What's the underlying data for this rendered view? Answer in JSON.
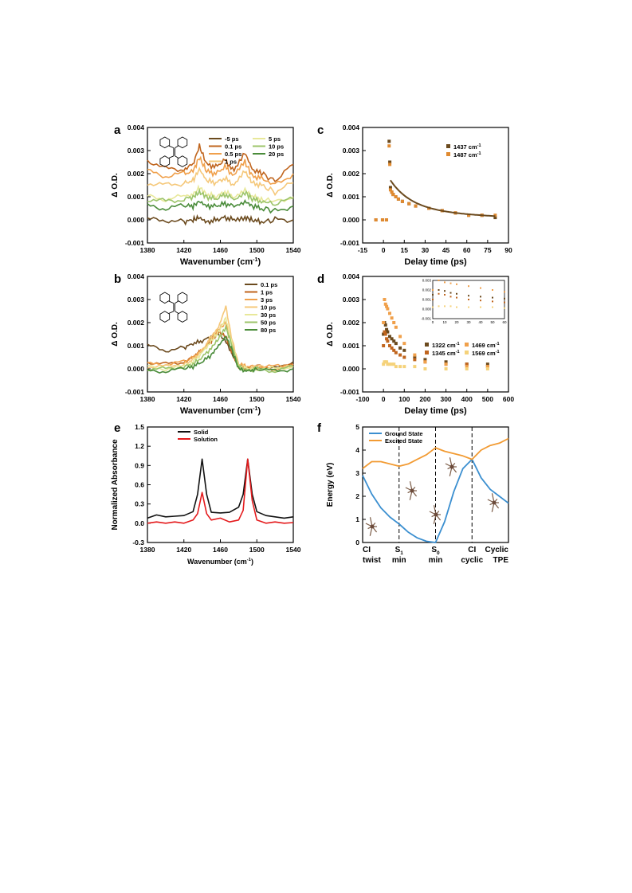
{
  "figure": {
    "panels": [
      {
        "letter": "a",
        "x_label": "Wavenumber (cm",
        "x_sup": "-1",
        "x_tail": ")",
        "y_label": "Δ O.D.",
        "x_ticks": [
          "1380",
          "1420",
          "1460",
          "1500",
          "1540"
        ],
        "y_ticks": [
          "-0.001",
          "0.000",
          "0.001",
          "0.002",
          "0.003",
          "0.004"
        ],
        "legend": [
          "-5 ps",
          "0.1 ps",
          "0.5 ps",
          "1 ps",
          "5 ps",
          "10 ps",
          "20 ps"
        ]
      },
      {
        "letter": "b",
        "x_label": "Wavenumber (cm",
        "x_sup": "-1",
        "x_tail": ")",
        "y_label": "Δ O.D.",
        "x_ticks": [
          "1380",
          "1420",
          "1460",
          "1500",
          "1540"
        ],
        "y_ticks": [
          "-0.001",
          "0.000",
          "0.001",
          "0.002",
          "0.003",
          "0.004"
        ],
        "legend": [
          "0.1 ps",
          "1 ps",
          "3 ps",
          "10 ps",
          "30 ps",
          "50 ps",
          "80 ps"
        ]
      },
      {
        "letter": "c",
        "x_label": "Delay time (ps)",
        "y_label": "Δ O.D.",
        "x_ticks": [
          "-15",
          "0",
          "15",
          "30",
          "45",
          "60",
          "75",
          "90"
        ],
        "y_ticks": [
          "-0.001",
          "0.000",
          "0.001",
          "0.002",
          "0.003",
          "0.004"
        ],
        "legend": [
          "1437 cm",
          "1487 cm"
        ],
        "legend_sup": "-1"
      },
      {
        "letter": "d",
        "x_label": "Delay time (ps)",
        "y_label": "Δ O.D.",
        "x_ticks": [
          "-100",
          "0",
          "100",
          "200",
          "300",
          "400",
          "500",
          "600"
        ],
        "y_ticks": [
          "-0.001",
          "0.000",
          "0.001",
          "0.002",
          "0.003",
          "0.004"
        ],
        "inset_x_ticks": [
          "0",
          "10",
          "20",
          "30",
          "40",
          "50",
          "60"
        ],
        "inset_y_ticks": [
          "-0.001",
          "0.000",
          "0.001",
          "0.002",
          "0.003"
        ],
        "legend": [
          "1322 cm",
          "1345 cm",
          "1469 cm",
          "1569 cm"
        ],
        "legend_sup": "-1"
      },
      {
        "letter": "e",
        "x_label": "Wavenumber (cm",
        "x_sup": "-1",
        "x_tail": ")",
        "y_label": "Normalized Absorbance",
        "x_ticks": [
          "1380",
          "1420",
          "1460",
          "1500",
          "1540"
        ],
        "y_ticks": [
          "-0.3",
          "0.0",
          "0.3",
          "0.6",
          "0.9",
          "1.2",
          "1.5"
        ],
        "legend": [
          "Solid",
          "Solution"
        ]
      },
      {
        "letter": "f",
        "y_label": "Energy (eV)",
        "y_ticks": [
          "0",
          "1",
          "2",
          "3",
          "4",
          "5"
        ],
        "x_ticks": [
          {
            "top": "CI",
            "bottom": "twist"
          },
          {
            "top": "S",
            "sub": "1",
            "bottom": "min"
          },
          {
            "top": "S",
            "sub": "0",
            "bottom": "min"
          },
          {
            "top": "CI",
            "bottom": "cyclic"
          },
          {
            "top": "Cyclic",
            "bottom": "TPE"
          }
        ],
        "legend": [
          "Ground State",
          "Excited State"
        ]
      }
    ]
  },
  "chart_data": [
    {
      "type": "line",
      "panel": "a",
      "xlim": [
        1380,
        1540
      ],
      "ylim": [
        -0.001,
        0.004
      ],
      "x": [
        1380,
        1400,
        1420,
        1430,
        1437,
        1445,
        1455,
        1465,
        1475,
        1487,
        1495,
        1505,
        1520,
        1540
      ],
      "series": [
        {
          "name": "-5 ps",
          "color": "#6b4a1e",
          "values": [
            0.0,
            0.0,
            -0.0001,
            0.0,
            0.0001,
            -0.0001,
            0.0,
            0.0001,
            0.0,
            0.0001,
            0.0,
            -0.0001,
            0.0,
            0.0
          ]
        },
        {
          "name": "0.1 ps",
          "color": "#c0651e",
          "values": [
            0.0026,
            0.0022,
            0.0022,
            0.0024,
            0.0032,
            0.0024,
            0.0023,
            0.0026,
            0.0021,
            0.0029,
            0.0022,
            0.002,
            0.0017,
            0.0024
          ]
        },
        {
          "name": "0.5 ps",
          "color": "#f0a04b",
          "values": [
            0.0021,
            0.0019,
            0.002,
            0.0021,
            0.0027,
            0.0021,
            0.002,
            0.0023,
            0.0019,
            0.0025,
            0.0019,
            0.0018,
            0.0015,
            0.002
          ]
        },
        {
          "name": "1 ps",
          "color": "#f5c87a",
          "values": [
            0.0016,
            0.0015,
            0.0016,
            0.0017,
            0.0022,
            0.0017,
            0.0016,
            0.0018,
            0.0015,
            0.0021,
            0.0016,
            0.0015,
            0.0012,
            0.0016
          ]
        },
        {
          "name": "5 ps",
          "color": "#e8e89a",
          "values": [
            0.001,
            0.0009,
            0.001,
            0.0011,
            0.0014,
            0.0011,
            0.001,
            0.0012,
            0.001,
            0.0013,
            0.001,
            0.0009,
            0.0008,
            0.001
          ]
        },
        {
          "name": "10 ps",
          "color": "#9cc46a",
          "values": [
            0.0009,
            0.0008,
            0.0009,
            0.001,
            0.0012,
            0.001,
            0.0009,
            0.0011,
            0.0009,
            0.0012,
            0.0009,
            0.0008,
            0.0007,
            0.0009
          ]
        },
        {
          "name": "20 ps",
          "color": "#4a8c3a",
          "values": [
            0.0006,
            0.0005,
            0.0006,
            0.0006,
            0.0008,
            0.0006,
            0.0006,
            0.0007,
            0.0006,
            0.0008,
            0.0006,
            0.0005,
            0.0004,
            0.0006
          ]
        }
      ]
    },
    {
      "type": "line",
      "panel": "b",
      "xlim": [
        1380,
        1540
      ],
      "ylim": [
        -0.001,
        0.004
      ],
      "x": [
        1380,
        1400,
        1420,
        1430,
        1440,
        1450,
        1458,
        1466,
        1472,
        1480,
        1490,
        1500,
        1520,
        1540
      ],
      "series": [
        {
          "name": "0.1 ps",
          "color": "#6b4a1e",
          "values": [
            0.001,
            0.0008,
            0.0009,
            0.0011,
            0.0012,
            0.0014,
            0.0015,
            0.0012,
            0.0007,
            0.0001,
            0.0,
            0.0001,
            0.0,
            0.0003
          ]
        },
        {
          "name": "1 ps",
          "color": "#c0651e",
          "values": [
            0.0003,
            0.0002,
            0.0003,
            0.0005,
            0.0008,
            0.0012,
            0.0016,
            0.0014,
            0.0008,
            0.0001,
            0.0,
            0.0001,
            0.0,
            0.0002
          ]
        },
        {
          "name": "3 ps",
          "color": "#f0a04b",
          "values": [
            0.0002,
            0.0002,
            0.0003,
            0.0005,
            0.0008,
            0.0013,
            0.0017,
            0.002,
            0.0012,
            0.0002,
            0.0001,
            0.0001,
            0.0001,
            0.0002
          ]
        },
        {
          "name": "10 ps",
          "color": "#f5c87a",
          "values": [
            0.0001,
            0.0001,
            0.0002,
            0.0004,
            0.0008,
            0.0014,
            0.0018,
            0.0027,
            0.0014,
            0.0002,
            0.0,
            0.0001,
            0.0,
            0.0001
          ]
        },
        {
          "name": "30 ps",
          "color": "#e8e89a",
          "values": [
            0.0001,
            0.0,
            0.0001,
            0.0003,
            0.0007,
            0.0012,
            0.0016,
            0.0022,
            0.0012,
            0.0001,
            0.0,
            0.0,
            0.0,
            0.0001
          ]
        },
        {
          "name": "50 ps",
          "color": "#9cc46a",
          "values": [
            0.0,
            0.0,
            0.0001,
            0.0002,
            0.0005,
            0.0009,
            0.0013,
            0.0018,
            0.0011,
            0.0001,
            -0.0001,
            0.0,
            -0.0001,
            0.0001
          ]
        },
        {
          "name": "80 ps",
          "color": "#4a8c3a",
          "values": [
            -0.0001,
            -0.0001,
            0.0,
            0.0001,
            0.0003,
            0.0006,
            0.001,
            0.0014,
            0.0009,
            0.0,
            -0.0001,
            0.0,
            -0.0001,
            0.0
          ]
        }
      ]
    },
    {
      "type": "scatter",
      "panel": "c",
      "xlim": [
        -20,
        90
      ],
      "ylim": [
        -0.001,
        0.004
      ],
      "x": [
        -10,
        -5,
        -2,
        0,
        0.5,
        1,
        2,
        3,
        5,
        7,
        10,
        15,
        20,
        30,
        40,
        50,
        60,
        70,
        80
      ],
      "series": [
        {
          "name": "1437 cm-1",
          "color": "#6b4a1e",
          "values": [
            0.0,
            0.0,
            0.0,
            0.0034,
            0.0025,
            0.0014,
            0.0012,
            0.0011,
            0.001,
            0.0009,
            0.0008,
            0.0007,
            0.0006,
            0.0005,
            0.0004,
            0.0003,
            0.0002,
            0.0002,
            0.0001
          ]
        },
        {
          "name": "1487 cm-1",
          "color": "#e08a30",
          "values": [
            0.0,
            0.0,
            0.0,
            0.0032,
            0.0024,
            0.0013,
            0.0012,
            0.0011,
            0.001,
            0.0009,
            0.0008,
            0.0007,
            0.0006,
            0.0005,
            0.0004,
            0.0003,
            0.0002,
            0.0002,
            0.0002
          ]
        }
      ]
    },
    {
      "type": "scatter",
      "panel": "d",
      "xlim": [
        -100,
        600
      ],
      "ylim": [
        -0.001,
        0.004
      ],
      "x": [
        0,
        5,
        10,
        15,
        20,
        30,
        40,
        50,
        60,
        80,
        100,
        150,
        200,
        300,
        400,
        500
      ],
      "series": [
        {
          "name": "1322 cm-1",
          "color": "#6b4a1e",
          "values": [
            0.0015,
            0.002,
            0.0019,
            0.0017,
            0.0016,
            0.0014,
            0.0013,
            0.0012,
            0.0011,
            0.0009,
            0.0008,
            0.0005,
            0.0004,
            0.0003,
            0.0002,
            0.0002
          ]
        },
        {
          "name": "1345 cm-1",
          "color": "#c0651e",
          "values": [
            0.001,
            0.0016,
            0.0015,
            0.0013,
            0.0012,
            0.001,
            0.0009,
            0.0008,
            0.0007,
            0.0006,
            0.0005,
            0.0004,
            0.0003,
            0.0002,
            0.0002,
            0.0001
          ]
        },
        {
          "name": "1469 cm-1",
          "color": "#f0a04b",
          "values": [
            0.002,
            0.003,
            0.0028,
            0.0027,
            0.0026,
            0.0024,
            0.0022,
            0.002,
            0.0018,
            0.0014,
            0.0011,
            0.0006,
            0.0003,
            0.0002,
            0.0001,
            0.0001
          ]
        },
        {
          "name": "1569 cm-1",
          "color": "#f5d27a",
          "values": [
            0.0002,
            0.0003,
            0.0003,
            0.0003,
            0.0002,
            0.0002,
            0.0002,
            0.0002,
            0.0001,
            0.0001,
            0.0001,
            0.0001,
            0.0,
            0.0,
            0.0,
            0.0
          ]
        }
      ]
    },
    {
      "type": "line",
      "panel": "e",
      "xlim": [
        1380,
        1540
      ],
      "ylim": [
        -0.3,
        1.5
      ],
      "x": [
        1380,
        1390,
        1400,
        1410,
        1420,
        1430,
        1435,
        1440,
        1445,
        1450,
        1460,
        1470,
        1480,
        1485,
        1490,
        1495,
        1500,
        1510,
        1520,
        1530,
        1540
      ],
      "series": [
        {
          "name": "Solid",
          "color": "#111111",
          "values": [
            0.08,
            0.13,
            0.1,
            0.11,
            0.12,
            0.18,
            0.45,
            1.0,
            0.45,
            0.17,
            0.16,
            0.17,
            0.25,
            0.45,
            1.0,
            0.45,
            0.18,
            0.12,
            0.1,
            0.08,
            0.1
          ]
        },
        {
          "name": "Solution",
          "color": "#e41a1c",
          "values": [
            0.0,
            0.02,
            0.0,
            0.02,
            0.0,
            0.05,
            0.15,
            0.48,
            0.15,
            0.05,
            0.08,
            0.02,
            0.05,
            0.2,
            1.0,
            0.35,
            0.05,
            0.0,
            0.02,
            0.0,
            0.01
          ]
        }
      ]
    },
    {
      "type": "line",
      "panel": "f",
      "ylim": [
        0,
        5
      ],
      "categories": [
        "CI twist",
        "S1 min",
        "S0 min",
        "CI cyclic",
        "Cyclic TPE"
      ],
      "x": [
        0,
        0.25,
        0.5,
        0.75,
        1,
        1.25,
        1.5,
        1.75,
        2,
        2.25,
        2.5,
        2.75,
        3,
        3.25,
        3.5,
        3.75,
        4
      ],
      "series": [
        {
          "name": "Ground State",
          "color": "#3b8fd0",
          "values": [
            2.9,
            2.1,
            1.5,
            1.1,
            0.8,
            0.45,
            0.2,
            0.05,
            0.0,
            0.9,
            2.2,
            3.2,
            3.6,
            2.8,
            2.3,
            2.0,
            1.7
          ]
        },
        {
          "name": "Excited State",
          "color": "#f29b33",
          "values": [
            3.2,
            3.5,
            3.5,
            3.4,
            3.3,
            3.4,
            3.6,
            3.8,
            4.1,
            3.95,
            3.85,
            3.75,
            3.6,
            4.0,
            4.2,
            4.3,
            4.5
          ]
        }
      ]
    }
  ]
}
